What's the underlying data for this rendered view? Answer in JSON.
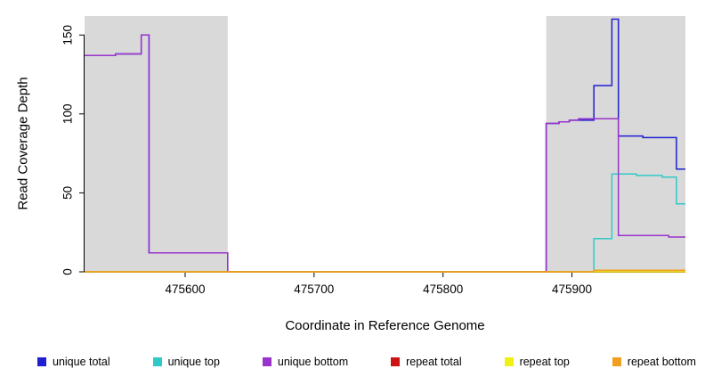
{
  "chart_data": {
    "type": "line",
    "step": "after",
    "title": "",
    "xlabel": "Coordinate in Reference Genome",
    "ylabel": "Read Coverage Depth",
    "xlim": [
      475522,
      475988
    ],
    "ylim": [
      0,
      162
    ],
    "xticks": [
      475600,
      475700,
      475800,
      475900
    ],
    "yticks": [
      0,
      50,
      100,
      150
    ],
    "grid": false,
    "legend_position": "bottom",
    "shade_color": "#d9d9d9",
    "shaded_regions": [
      [
        475522,
        475633
      ],
      [
        475880,
        475988
      ]
    ],
    "series": [
      {
        "name": "unique total",
        "color": "#1f1fd1",
        "points": [
          [
            475522,
            137
          ],
          [
            475546,
            138
          ],
          [
            475566,
            150
          ],
          [
            475572,
            12
          ],
          [
            475633,
            0
          ],
          [
            475880,
            94
          ],
          [
            475890,
            95
          ],
          [
            475898,
            96
          ],
          [
            475917,
            118
          ],
          [
            475931,
            160
          ],
          [
            475936,
            86
          ],
          [
            475955,
            85
          ],
          [
            475981,
            65
          ],
          [
            475988,
            65
          ]
        ]
      },
      {
        "name": "unique top",
        "color": "#30c9c9",
        "points": [
          [
            475522,
            0
          ],
          [
            475917,
            21
          ],
          [
            475931,
            62
          ],
          [
            475950,
            61
          ],
          [
            475970,
            60
          ],
          [
            475981,
            43
          ],
          [
            475988,
            43
          ]
        ]
      },
      {
        "name": "unique bottom",
        "color": "#9933cc",
        "points": [
          [
            475522,
            137
          ],
          [
            475546,
            138
          ],
          [
            475566,
            150
          ],
          [
            475572,
            12
          ],
          [
            475633,
            0
          ],
          [
            475880,
            94
          ],
          [
            475890,
            95
          ],
          [
            475898,
            96
          ],
          [
            475905,
            97
          ],
          [
            475936,
            23
          ],
          [
            475960,
            23
          ],
          [
            475975,
            22
          ],
          [
            475988,
            22
          ]
        ]
      },
      {
        "name": "repeat total",
        "color": "#cc1414",
        "points": [
          [
            475522,
            0
          ],
          [
            475988,
            0
          ]
        ]
      },
      {
        "name": "repeat top",
        "color": "#f0f014",
        "points": [
          [
            475522,
            0
          ],
          [
            475988,
            0
          ]
        ]
      },
      {
        "name": "repeat bottom",
        "color": "#f0a01e",
        "points": [
          [
            475522,
            0
          ],
          [
            475917,
            1
          ],
          [
            475988,
            1
          ]
        ]
      }
    ]
  }
}
